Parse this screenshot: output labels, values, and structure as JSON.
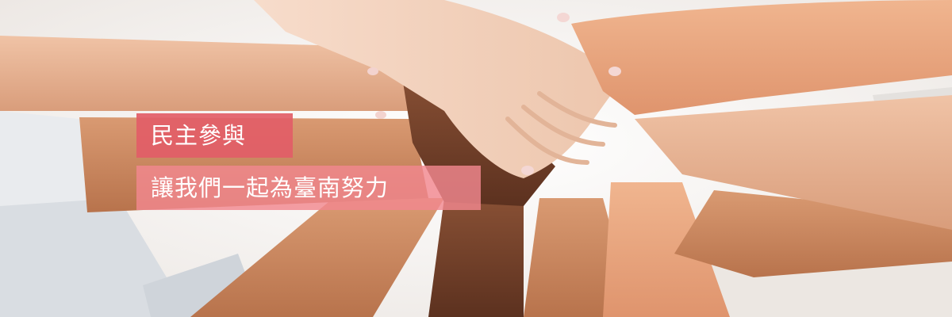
{
  "banner": {
    "title": "民主參與",
    "subtitle": "讓我們一起為臺南努力",
    "colors": {
      "title_bg": "#e25d67",
      "subtitle_bg": "#f1888f",
      "text": "#ffffff"
    },
    "image": "stacked-hands-teamwork-photo"
  }
}
